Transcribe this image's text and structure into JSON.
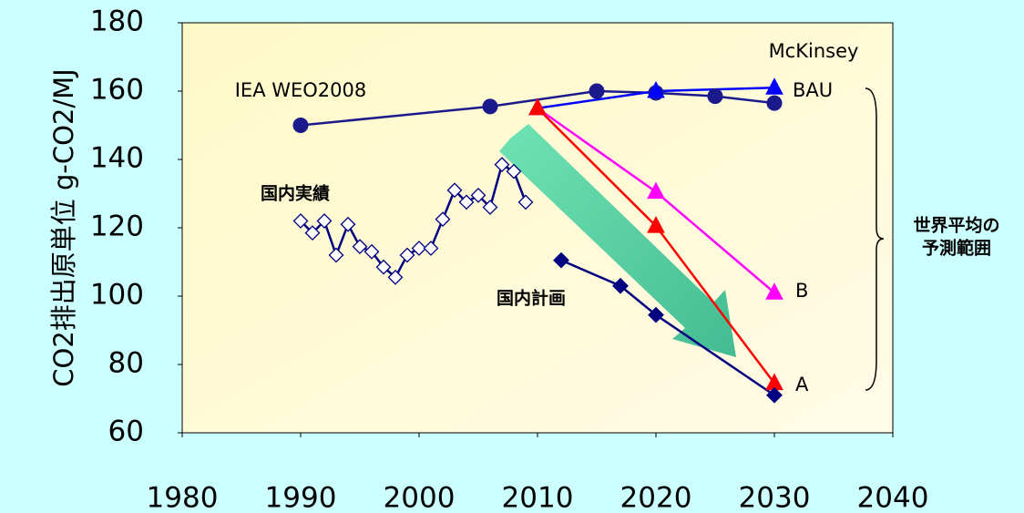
{
  "chart_data": {
    "type": "line",
    "ylabel": "CO2排出原単位 g-CO2/MJ",
    "xlim": [
      1980,
      2040
    ],
    "xticks": [
      1980,
      1990,
      2000,
      2010,
      2020,
      2030,
      2040
    ],
    "ylim": [
      60,
      180
    ],
    "yticks": [
      60,
      80,
      100,
      120,
      140,
      160,
      180
    ],
    "source_label": "McKinsey",
    "range_label": [
      "世界平均の",
      "予測範囲"
    ],
    "series": [
      {
        "name": "IEA WEO2008",
        "color": "#1a1a8c",
        "marker": "circle",
        "x": [
          1990,
          2006,
          2015,
          2020,
          2025,
          2030
        ],
        "values": [
          150,
          155.5,
          160,
          159.5,
          158.5,
          156.5
        ]
      },
      {
        "name": "BAU",
        "color": "#0000ff",
        "marker": "triangle",
        "x": [
          2010,
          2020,
          2030
        ],
        "values": [
          155,
          160,
          161
        ]
      },
      {
        "name": "B",
        "color": "#ff00ff",
        "marker": "triangle",
        "x": [
          2010,
          2020,
          2030
        ],
        "values": [
          155,
          130.5,
          101
        ]
      },
      {
        "name": "A",
        "color": "#ff0000",
        "marker": "triangle",
        "x": [
          2010,
          2020,
          2030
        ],
        "values": [
          155,
          120.5,
          74.5
        ]
      },
      {
        "name": "国内計画",
        "color": "#000080",
        "marker": "diamond",
        "x": [
          2012,
          2017,
          2020,
          2030
        ],
        "values": [
          110.5,
          103,
          94.5,
          71
        ]
      },
      {
        "name": "国内実績",
        "color": "#000080",
        "marker": "diamond-open",
        "x": [
          1990,
          1991,
          1992,
          1993,
          1994,
          1995,
          1996,
          1997,
          1998,
          1999,
          2000,
          2001,
          2002,
          2003,
          2004,
          2005,
          2006,
          2007,
          2008,
          2009
        ],
        "values": [
          122,
          118.5,
          122,
          112,
          121,
          114.5,
          113,
          108.5,
          105.5,
          112,
          114,
          114,
          122.5,
          131,
          127.5,
          129.5,
          126,
          138.5,
          136.5,
          127.5
        ]
      }
    ]
  }
}
